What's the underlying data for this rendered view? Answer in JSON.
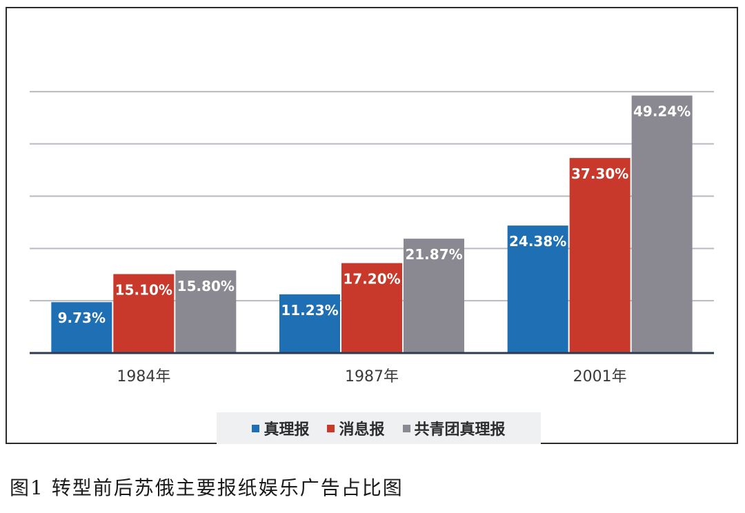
{
  "caption": "图1 转型前后苏俄主要报纸娱乐广告占比图",
  "chart_data": {
    "type": "bar",
    "categories": [
      "1984年",
      "1987年",
      "2001年"
    ],
    "series": [
      {
        "name": "真理报",
        "values": [
          9.73,
          11.23,
          24.38
        ],
        "labels": [
          "9.73%",
          "11.23%",
          "24.38%"
        ],
        "color": "#1f6fb5"
      },
      {
        "name": "消息报",
        "values": [
          15.1,
          17.2,
          37.3
        ],
        "labels": [
          "15.10%",
          "17.20%",
          "37.30%"
        ],
        "color": "#c8392b"
      },
      {
        "name": "共青团真理报",
        "values": [
          15.8,
          21.87,
          49.24
        ],
        "labels": [
          "15.80%",
          "21.87%",
          "49.24%"
        ],
        "color": "#8a8891"
      }
    ],
    "ylim": [
      0,
      60
    ],
    "gridline_step": 10,
    "grid": true,
    "legend_position": "bottom",
    "title": "",
    "xlabel": "",
    "ylabel": ""
  }
}
